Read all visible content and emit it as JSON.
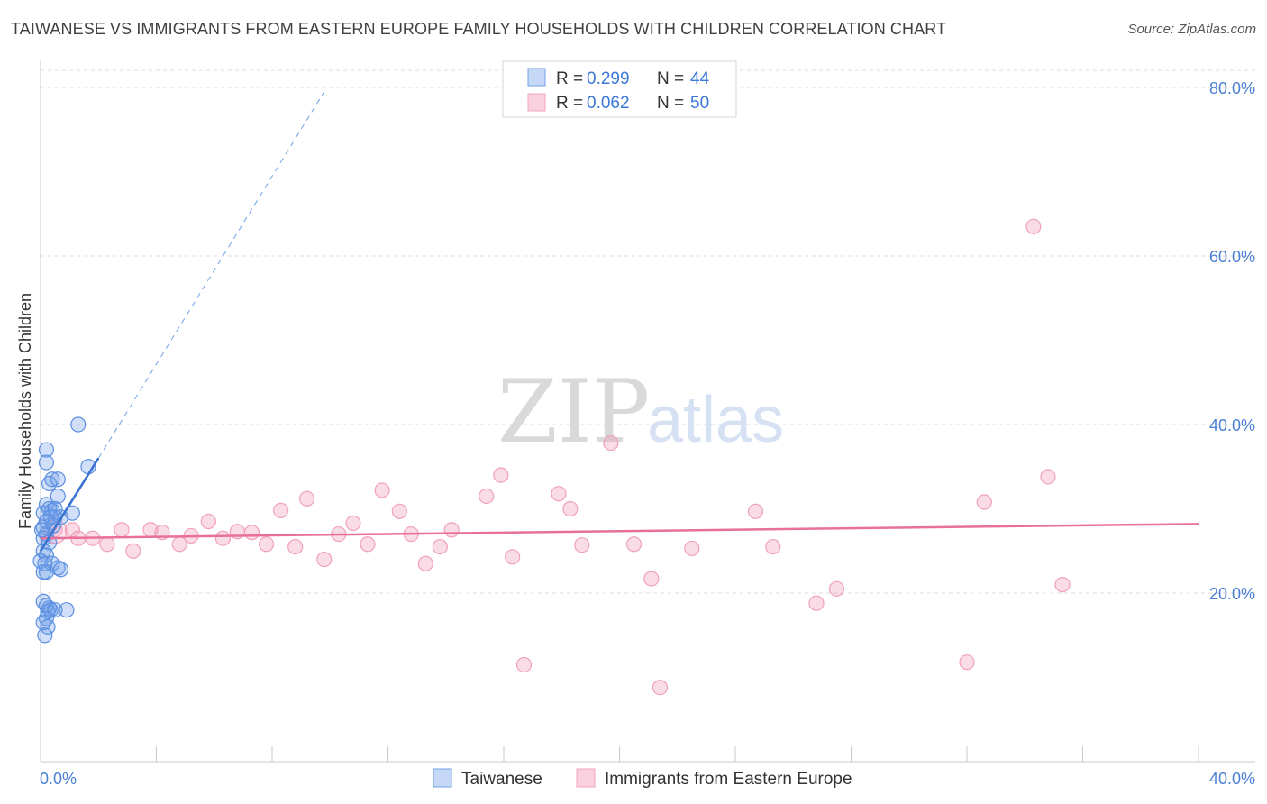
{
  "title": "TAIWANESE VS IMMIGRANTS FROM EASTERN EUROPE FAMILY HOUSEHOLDS WITH CHILDREN CORRELATION CHART",
  "source": "Source: ZipAtlas.com",
  "watermark": {
    "zip": "ZIP",
    "atlas": "atlas"
  },
  "colors": {
    "blue": "#6fa0e8",
    "blue_line": "#3b73d1",
    "pink": "#f3a4bf",
    "pink_line": "#e8709a",
    "tick_text": "#4a7fd4"
  },
  "stats": [
    {
      "r_label": "R =",
      "r_value": "0.299",
      "n_label": "N =",
      "n_value": "44"
    },
    {
      "r_label": "R =",
      "r_value": "0.062",
      "n_label": "N =",
      "n_value": "50"
    }
  ],
  "legend": [
    {
      "label": "Taiwanese"
    },
    {
      "label": "Immigrants from Eastern Europe"
    }
  ],
  "chart_data": {
    "type": "scatter",
    "title": "TAIWANESE VS IMMIGRANTS FROM EASTERN EUROPE FAMILY HOUSEHOLDS WITH CHILDREN CORRELATION CHART",
    "xlabel": "",
    "ylabel": "Family Households with Children",
    "xlim": [
      0,
      42
    ],
    "ylim": [
      0,
      82
    ],
    "x_tick_labels": [
      {
        "value": 0,
        "label": "0.0%"
      },
      {
        "value": 40,
        "label": "40.0%"
      }
    ],
    "x_minor_ticks": [
      0,
      4,
      8,
      12,
      16,
      20,
      24,
      28,
      32,
      36,
      40
    ],
    "y_ticks": [
      {
        "value": 20,
        "label": "20.0%"
      },
      {
        "value": 40,
        "label": "40.0%"
      },
      {
        "value": 60,
        "label": "60.0%"
      },
      {
        "value": 80,
        "label": "80.0%"
      }
    ],
    "series": [
      {
        "name": "Taiwanese",
        "color": "#6fa0e8",
        "points": [
          [
            0.2,
            37.0
          ],
          [
            0.2,
            35.5
          ],
          [
            0.3,
            33.0
          ],
          [
            0.4,
            33.5
          ],
          [
            0.6,
            33.5
          ],
          [
            0.6,
            31.5
          ],
          [
            0.2,
            30.5
          ],
          [
            0.3,
            30.0
          ],
          [
            0.4,
            29.8
          ],
          [
            0.1,
            29.5
          ],
          [
            0.5,
            29.0
          ],
          [
            0.7,
            29.0
          ],
          [
            1.1,
            29.5
          ],
          [
            0.2,
            28.5
          ],
          [
            0.1,
            27.8
          ],
          [
            0.2,
            27.0
          ],
          [
            0.1,
            26.5
          ],
          [
            0.3,
            26.0
          ],
          [
            0.1,
            25.0
          ],
          [
            0.2,
            24.5
          ],
          [
            0.0,
            23.8
          ],
          [
            0.4,
            23.5
          ],
          [
            0.6,
            23.0
          ],
          [
            0.7,
            22.8
          ],
          [
            0.2,
            22.5
          ],
          [
            0.1,
            22.5
          ],
          [
            0.2,
            18.5
          ],
          [
            0.3,
            18.2
          ],
          [
            0.35,
            18.0
          ],
          [
            0.25,
            17.8
          ],
          [
            0.5,
            18.0
          ],
          [
            0.9,
            18.0
          ],
          [
            0.1,
            19.0
          ],
          [
            0.2,
            17.0
          ],
          [
            0.1,
            16.5
          ],
          [
            0.25,
            16.0
          ],
          [
            0.15,
            15.0
          ],
          [
            1.3,
            40.0
          ],
          [
            1.65,
            35.0
          ],
          [
            0.05,
            27.5
          ],
          [
            0.35,
            29.0
          ],
          [
            0.15,
            23.5
          ],
          [
            0.5,
            30.0
          ],
          [
            0.45,
            28.0
          ]
        ],
        "trend": {
          "x_start": 0.0,
          "y_start": 25.0,
          "x_solid_end": 2.0,
          "y_solid_end": 36.0,
          "x_end": 9.8,
          "y_end": 79.5
        }
      },
      {
        "name": "Immigrants from Eastern Europe",
        "color": "#f3a4bf",
        "points": [
          [
            0.5,
            27.5
          ],
          [
            1.1,
            27.5
          ],
          [
            1.3,
            26.5
          ],
          [
            1.8,
            26.5
          ],
          [
            2.3,
            25.8
          ],
          [
            2.8,
            27.5
          ],
          [
            3.2,
            25.0
          ],
          [
            3.8,
            27.5
          ],
          [
            4.2,
            27.2
          ],
          [
            4.8,
            25.8
          ],
          [
            5.2,
            26.8
          ],
          [
            5.8,
            28.5
          ],
          [
            6.3,
            26.5
          ],
          [
            6.8,
            27.3
          ],
          [
            7.3,
            27.2
          ],
          [
            7.8,
            25.8
          ],
          [
            8.3,
            29.8
          ],
          [
            8.8,
            25.5
          ],
          [
            9.2,
            31.2
          ],
          [
            9.8,
            24.0
          ],
          [
            10.3,
            27.0
          ],
          [
            10.8,
            28.3
          ],
          [
            11.3,
            25.8
          ],
          [
            11.8,
            32.2
          ],
          [
            12.4,
            29.7
          ],
          [
            12.8,
            27.0
          ],
          [
            13.3,
            23.5
          ],
          [
            13.8,
            25.5
          ],
          [
            14.2,
            27.5
          ],
          [
            15.4,
            31.5
          ],
          [
            15.9,
            34.0
          ],
          [
            16.3,
            24.3
          ],
          [
            16.7,
            11.5
          ],
          [
            17.9,
            31.8
          ],
          [
            18.3,
            30.0
          ],
          [
            18.7,
            25.7
          ],
          [
            19.7,
            37.8
          ],
          [
            20.5,
            25.8
          ],
          [
            21.1,
            21.7
          ],
          [
            21.4,
            8.8
          ],
          [
            22.5,
            25.3
          ],
          [
            24.7,
            29.7
          ],
          [
            25.3,
            25.5
          ],
          [
            26.8,
            18.8
          ],
          [
            27.5,
            20.5
          ],
          [
            32.0,
            11.8
          ],
          [
            32.6,
            30.8
          ],
          [
            34.3,
            63.5
          ],
          [
            34.8,
            33.8
          ],
          [
            35.3,
            21.0
          ]
        ],
        "trend": {
          "x_start": 0.0,
          "y_start": 26.5,
          "x_end": 40.0,
          "y_end": 28.2
        }
      }
    ]
  }
}
